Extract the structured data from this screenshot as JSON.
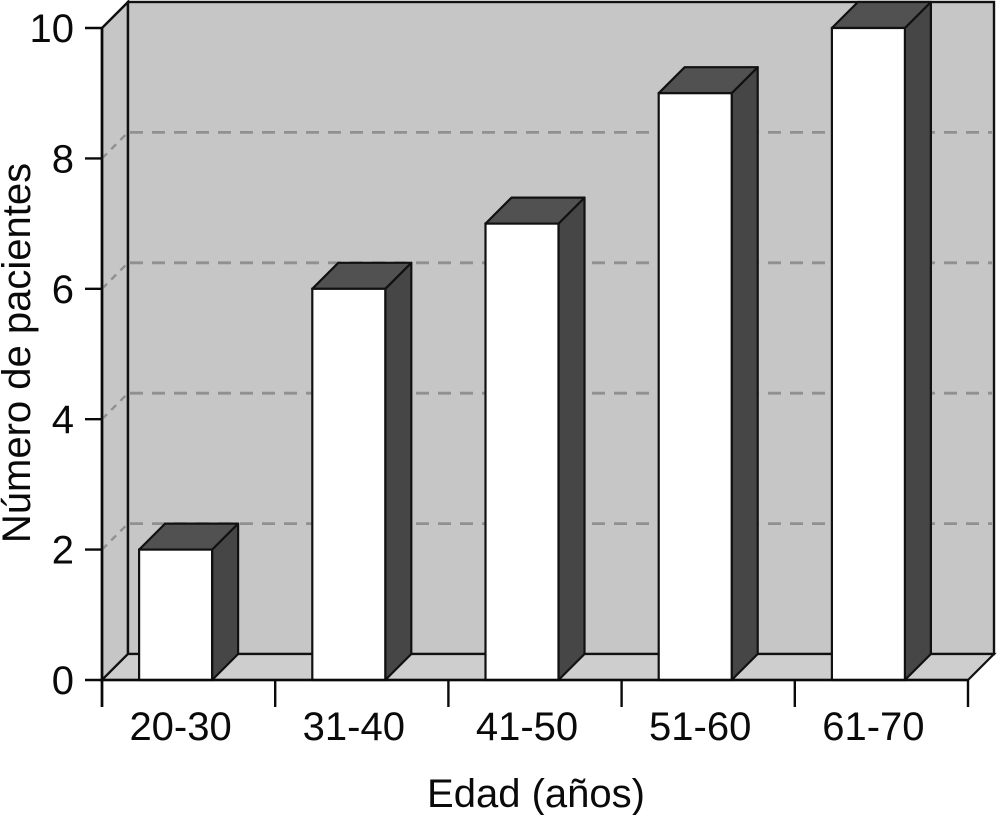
{
  "chart_data": {
    "type": "bar",
    "style": "3d-column",
    "title": "",
    "xlabel": "Edad (años)",
    "ylabel": "Número de pacientes",
    "categories": [
      "20-30",
      "31-40",
      "41-50",
      "51-60",
      "61-70"
    ],
    "values": [
      2,
      6,
      7,
      9,
      10
    ],
    "ylim": [
      0,
      10
    ],
    "yticks": [
      0,
      2,
      4,
      6,
      8,
      10
    ],
    "grid_values": [
      2,
      4,
      6,
      8
    ],
    "grid_style": "dashed horizontal lines on back wall",
    "legend": "none",
    "colors": {
      "background": "#ffffff",
      "wall": "#c6c6c6",
      "left_wall": "#c6c6c6",
      "floor": "#cecece",
      "bar_front": "#ffffff",
      "bar_top": "#515151",
      "bar_side": "#464646",
      "outline": "#111111",
      "gridline": "#909090",
      "axis": "#0a0a0a",
      "text": "#0a0a0a"
    }
  }
}
